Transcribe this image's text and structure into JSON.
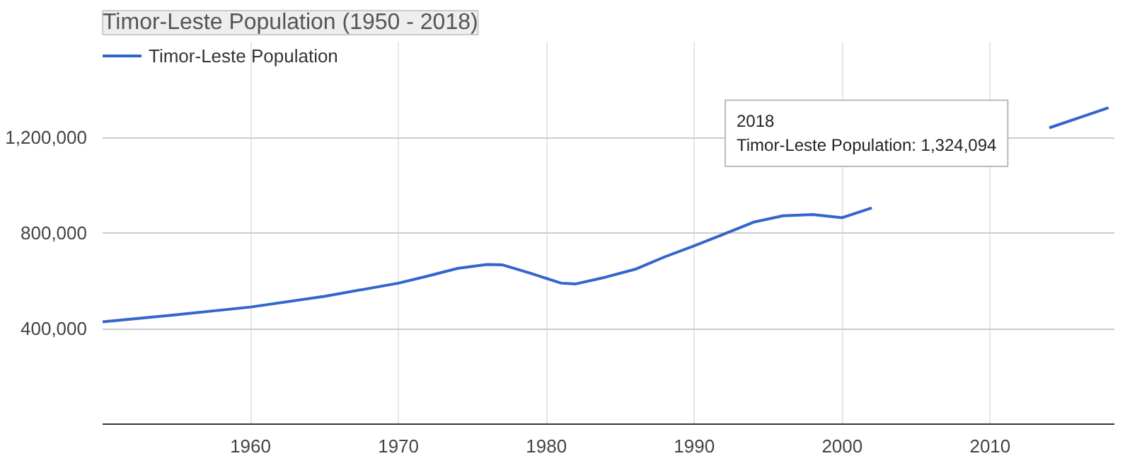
{
  "chart_data": {
    "type": "line",
    "title": "Timor-Leste Population (1950 - 2018)",
    "x": [
      1950,
      1955,
      1960,
      1965,
      1970,
      1972,
      1974,
      1976,
      1977,
      1979,
      1981,
      1982,
      1984,
      1986,
      1988,
      1990,
      1992,
      1994,
      1996,
      1998,
      2000,
      2002,
      2004,
      2006,
      2012,
      2014,
      2016,
      2018
    ],
    "series": [
      {
        "name": "Timor-Leste Population",
        "color": "#3366cc",
        "values": [
          428000,
          458000,
          490000,
          535000,
          590000,
          620000,
          652000,
          668000,
          667000,
          630000,
          590000,
          587000,
          615000,
          648000,
          700000,
          746000,
          795000,
          845000,
          872000,
          877000,
          864000,
          905000,
          null,
          null,
          null,
          1240000,
          1282000,
          1324094
        ]
      }
    ],
    "xlim": [
      1950,
      2018.4
    ],
    "xticks": [
      1960,
      1970,
      1980,
      1990,
      2000,
      2010
    ],
    "ylim": [
      0,
      1600000
    ],
    "yticks": [
      {
        "value": 400000,
        "label": "400,000"
      },
      {
        "value": 800000,
        "label": "800,000"
      },
      {
        "value": 1200000,
        "label": "1,200,000"
      }
    ],
    "annotations": [
      "2018\nTimor-Leste Population: 1,324,094"
    ],
    "grid": true,
    "legend": "top left",
    "line_style": "solid",
    "marker": "none"
  }
}
